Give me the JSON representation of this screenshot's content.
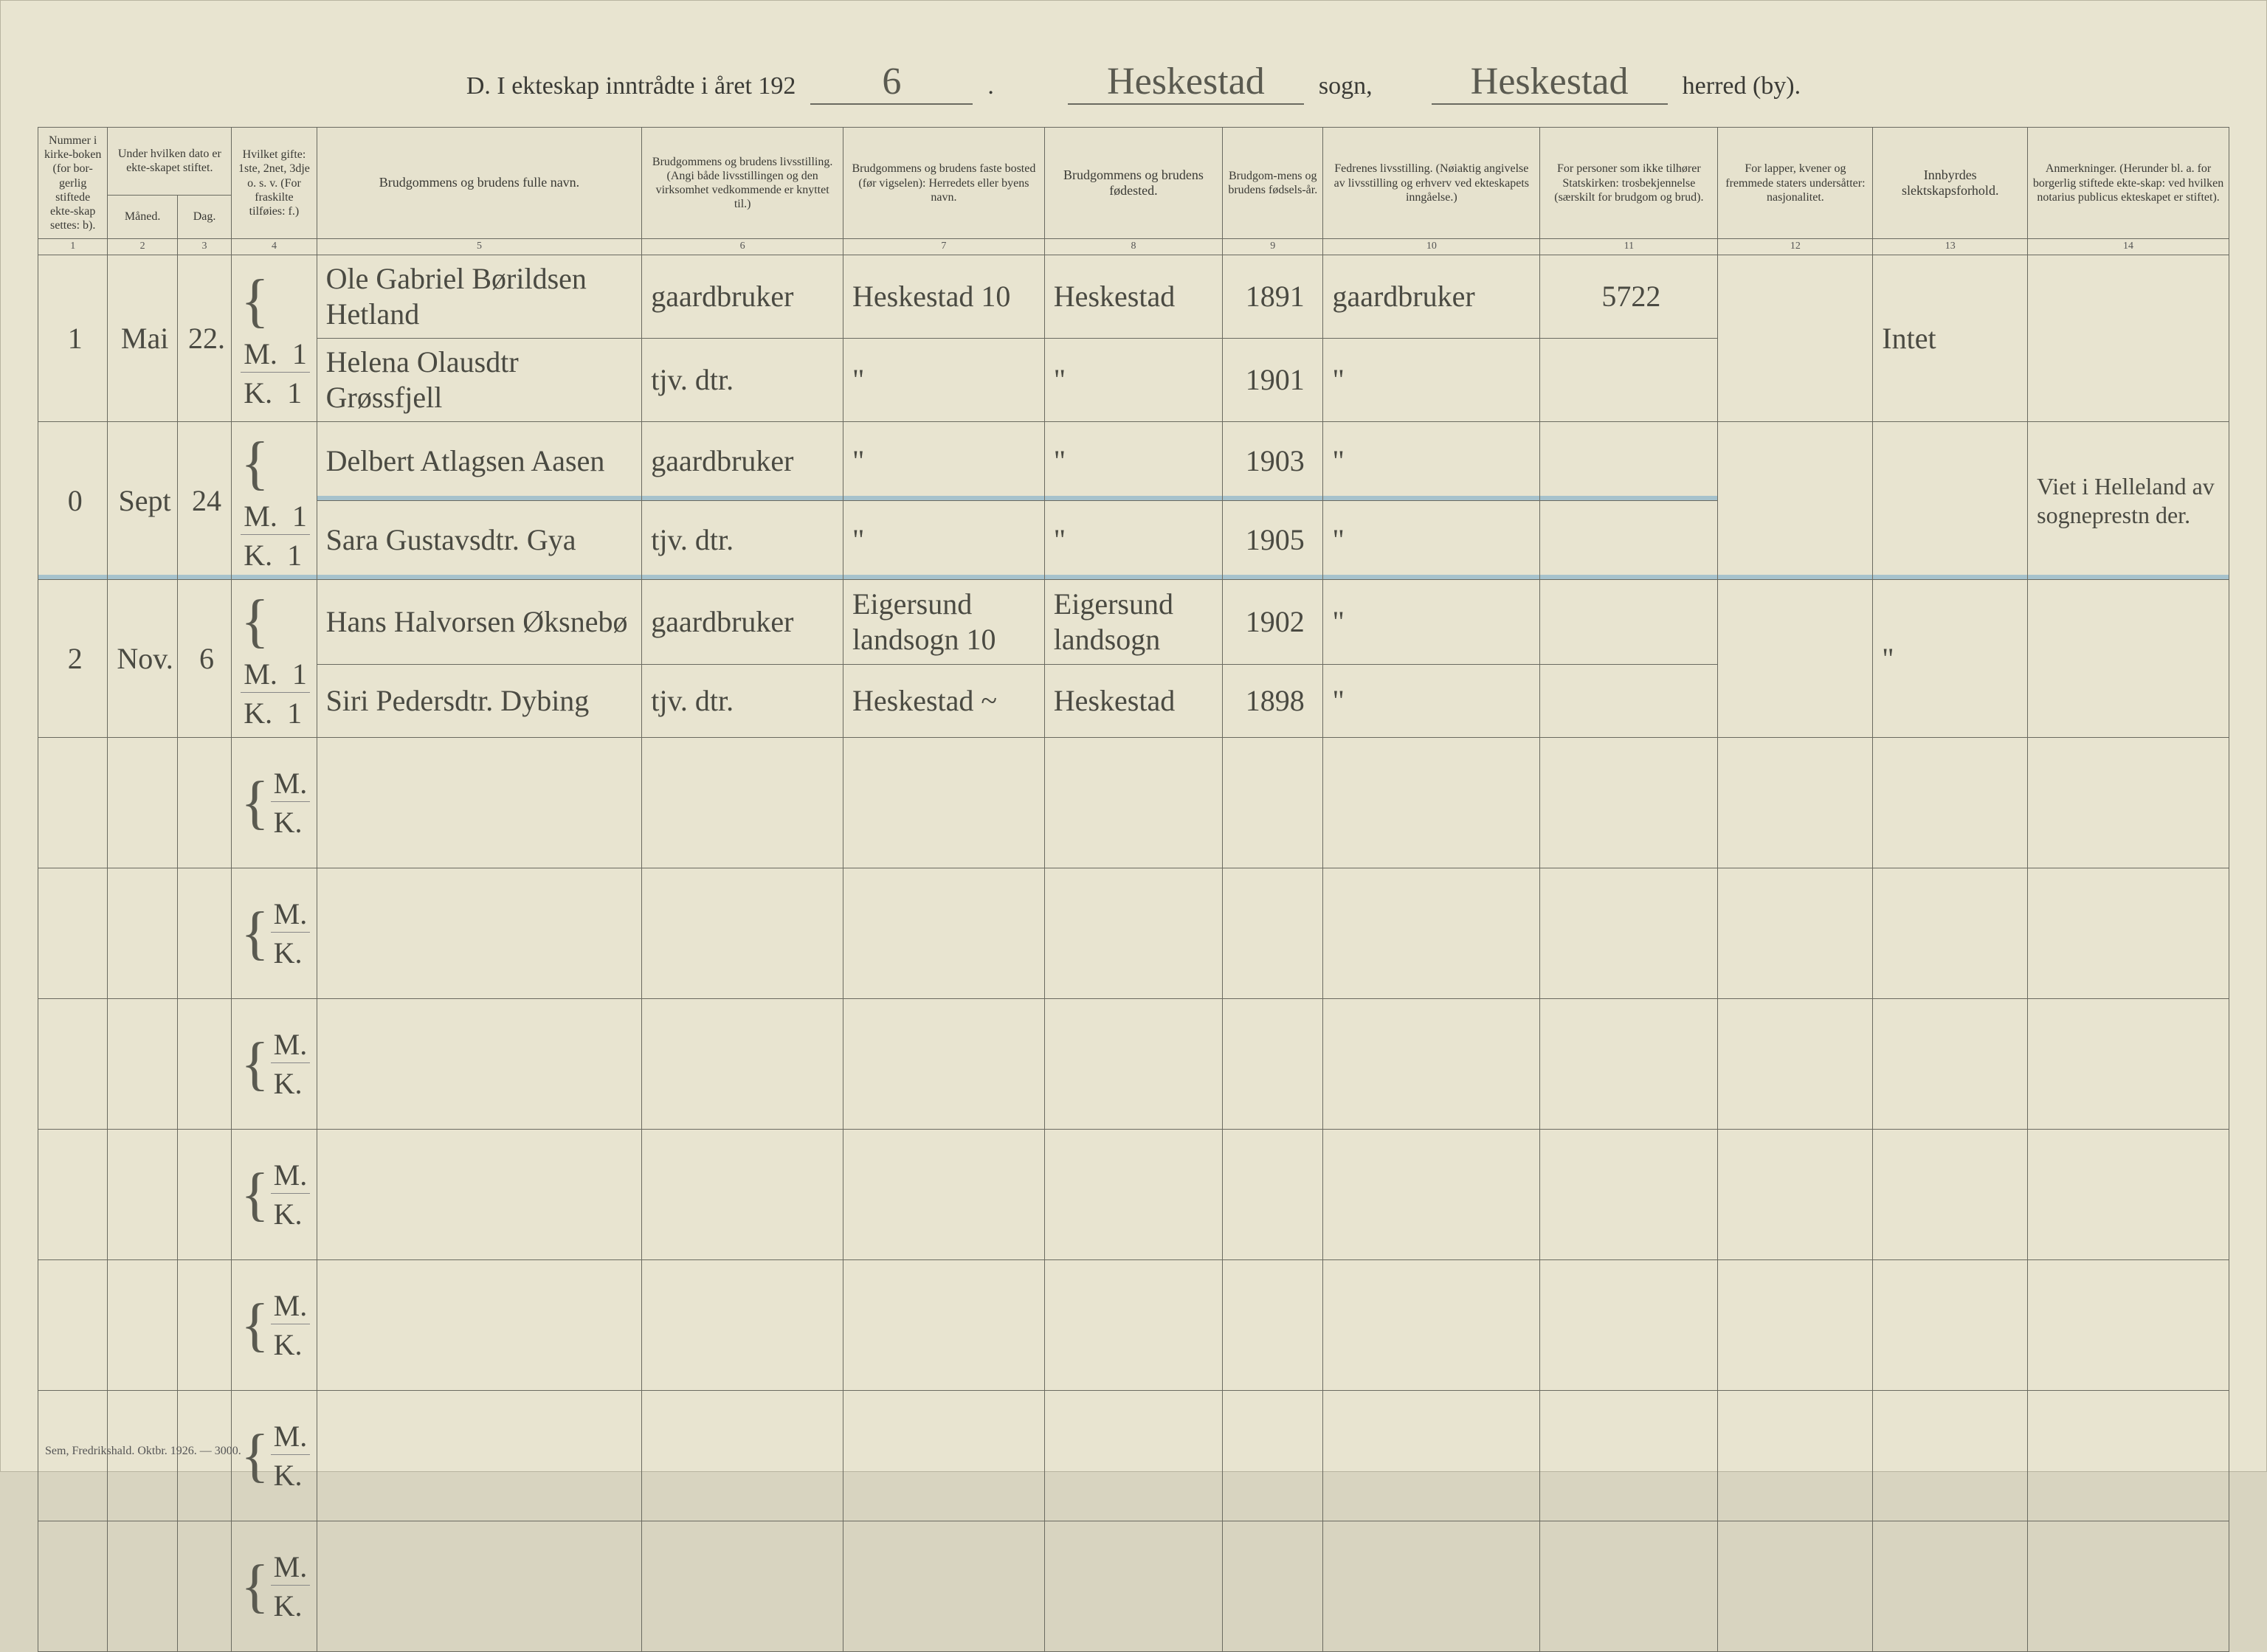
{
  "header": {
    "prefix": "D.  I ekteskap inntrådte i året 192",
    "year_digit": "6",
    "sogn_label": "sogn,",
    "sogn_value": "Heskestad",
    "herred_label": "herred (by).",
    "herred_value": "Heskestad"
  },
  "columns": {
    "c1": "Nummer i kirke-boken (for bor-gerlig stiftede ekte-skap settes: b).",
    "c2": "Under hvilken dato er ekte-skapet stiftet.",
    "c2a": "Måned.",
    "c2b": "Dag.",
    "c3": "Hvilket gifte: 1ste, 2net, 3dje o. s. v. (For fraskilte tilføies: f.)",
    "c4": "Brudgommens og brudens fulle navn.",
    "c5": "Brudgommens og brudens livsstilling. (Angi både livsstillingen og den virksomhet vedkommende er knyttet til.)",
    "c6": "Brudgommens og brudens faste bosted (før vigselen): Herredets eller byens navn.",
    "c7": "Brudgommens og brudens fødested.",
    "c8": "Brudgom-mens og brudens fødsels-år.",
    "c9": "Fedrenes livsstilling. (Nøiaktig angivelse av livsstilling og erhverv ved ekteskapets inngåelse.)",
    "c10": "For personer som ikke tilhører Statskirken: trosbekjennelse (særskilt for brudgom og brud).",
    "c11": "For lapper, kvener og fremmede staters undersåtter: nasjonalitet.",
    "c12": "Innbyrdes slektskapsforhold.",
    "c13": "Anmerkninger. (Herunder bl. a. for borgerlig stiftede ekte-skap: ved hvilken notarius publicus ekteskapet er stiftet)."
  },
  "colwidths": {
    "c1": 90,
    "c2a": 90,
    "c2b": 70,
    "c3": 110,
    "c4": 420,
    "c5": 260,
    "c6": 260,
    "c7": 230,
    "c8": 130,
    "c9": 280,
    "c10": 230,
    "c11": 200,
    "c12": 200,
    "c13": 260
  },
  "mk": {
    "m": "M.",
    "k": "K."
  },
  "records": [
    {
      "num": "1",
      "month": "Mai",
      "day": "22.",
      "groom": {
        "gifte": "1",
        "name": "Ole Gabriel Børildsen Hetland",
        "occ": "gaardbruker",
        "residence": "Heskestad 10",
        "birthplace": "Heskestad",
        "year": "1891",
        "father": "gaardbruker",
        "col10": "5722"
      },
      "bride": {
        "gifte": "1",
        "name": "Helena Olausdtr Grøssfjell",
        "occ": "tjv. dtr.",
        "residence": "\"",
        "birthplace": "\"",
        "year": "1901",
        "father": "\"",
        "col10": ""
      },
      "slekt": "Intet",
      "anm": ""
    },
    {
      "num": "0",
      "month": "Sept",
      "day": "24",
      "groom": {
        "gifte": "1",
        "name": "Delbert Atlagsen Aasen",
        "occ": "gaardbruker",
        "residence": "\"",
        "birthplace": "\"",
        "year": "1903",
        "father": "\"",
        "col10": ""
      },
      "bride": {
        "gifte": "1",
        "name": "Sara Gustavsdtr. Gya",
        "occ": "tjv. dtr.",
        "residence": "\"",
        "birthplace": "\"",
        "year": "1905",
        "father": "\"",
        "col10": ""
      },
      "slekt": "",
      "anm": "Viet i Helleland av sogneprestn der."
    },
    {
      "num": "2",
      "month": "Nov.",
      "day": "6",
      "groom": {
        "gifte": "1",
        "name": "Hans Halvorsen Øksnebø",
        "occ": "gaardbruker",
        "residence": "Eigersund landsogn 10",
        "birthplace": "Eigersund landsogn",
        "year": "1902",
        "father": "\"",
        "col10": ""
      },
      "bride": {
        "gifte": "1",
        "name": "Siri Pedersdtr. Dybing",
        "occ": "tjv. dtr.",
        "residence": "Heskestad  ~",
        "birthplace": "Heskestad",
        "year": "1898",
        "father": "\"",
        "col10": ""
      },
      "slekt": "\"",
      "anm": ""
    }
  ],
  "empty_rows": 7,
  "footer": "Sem, Fredrikshald. Oktbr. 1926. — 3000.",
  "styling": {
    "page_bg": "#e8e4d0",
    "border_color": "#6a6a60",
    "hand_color": "#4a4a42",
    "blue_overlay": "rgba(100,160,200,0.5)",
    "header_fontsize": 34,
    "th_fontsize": 18,
    "hand_fontsize": 40
  }
}
